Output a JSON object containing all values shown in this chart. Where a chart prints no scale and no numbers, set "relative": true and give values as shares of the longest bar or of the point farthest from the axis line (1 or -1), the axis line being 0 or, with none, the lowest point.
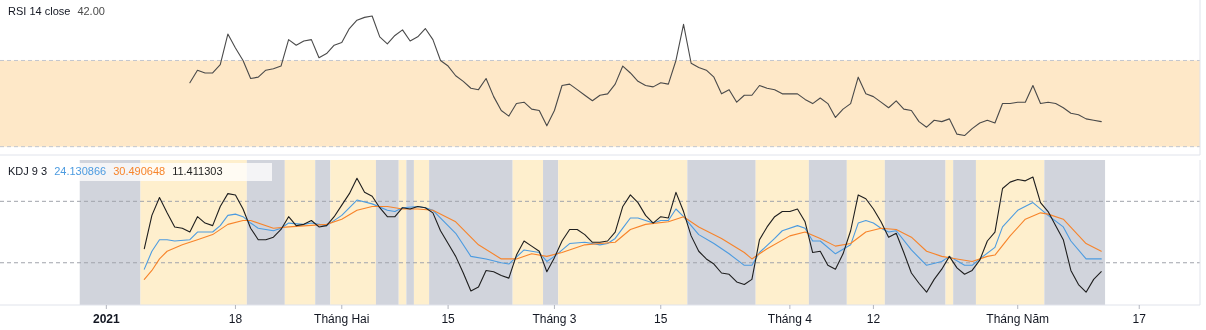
{
  "chart_data": [
    {
      "type": "line",
      "title": "RSI 14 close",
      "relative": true,
      "legend": "top left",
      "xlim": [
        "2020-12-18",
        "2021-05-25"
      ],
      "x": [
        "2021-01-12",
        "2021-01-13",
        "2021-01-14",
        "2021-01-15",
        "2021-01-16",
        "2021-01-17",
        "2021-01-18",
        "2021-01-19",
        "2021-01-20",
        "2021-01-21",
        "2021-01-22",
        "2021-01-23",
        "2021-01-24",
        "2021-01-25",
        "2021-01-26",
        "2021-01-27",
        "2021-01-28",
        "2021-01-29",
        "2021-01-30",
        "2021-01-31",
        "2021-02-01",
        "2021-02-02",
        "2021-02-03",
        "2021-02-04",
        "2021-02-05",
        "2021-02-06",
        "2021-02-07",
        "2021-02-08",
        "2021-02-09",
        "2021-02-10",
        "2021-02-11",
        "2021-02-12",
        "2021-02-13",
        "2021-02-14",
        "2021-02-15",
        "2021-02-16",
        "2021-02-17",
        "2021-02-18",
        "2021-02-19",
        "2021-02-20",
        "2021-02-21",
        "2021-02-22",
        "2021-02-23",
        "2021-02-24",
        "2021-02-25",
        "2021-02-26",
        "2021-02-27",
        "2021-02-28",
        "2021-03-01",
        "2021-03-02",
        "2021-03-03",
        "2021-03-04",
        "2021-03-05",
        "2021-03-06",
        "2021-03-07",
        "2021-03-08",
        "2021-03-09",
        "2021-03-10",
        "2021-03-11",
        "2021-03-12",
        "2021-03-13",
        "2021-03-14",
        "2021-03-15",
        "2021-03-16",
        "2021-03-17",
        "2021-03-18",
        "2021-03-19",
        "2021-03-20",
        "2021-03-21",
        "2021-03-22",
        "2021-03-23",
        "2021-03-24",
        "2021-03-25",
        "2021-03-26",
        "2021-03-27",
        "2021-03-28",
        "2021-03-29",
        "2021-03-30",
        "2021-03-31",
        "2021-04-01",
        "2021-04-02",
        "2021-04-03",
        "2021-04-04",
        "2021-04-05",
        "2021-04-06",
        "2021-04-07",
        "2021-04-08",
        "2021-04-09",
        "2021-04-10",
        "2021-04-11",
        "2021-04-12",
        "2021-04-13",
        "2021-04-14",
        "2021-04-15",
        "2021-04-16",
        "2021-04-17",
        "2021-04-18",
        "2021-04-19",
        "2021-04-20",
        "2021-04-21",
        "2021-04-22",
        "2021-04-23",
        "2021-04-24",
        "2021-04-25",
        "2021-04-26",
        "2021-04-27",
        "2021-04-28",
        "2021-04-29",
        "2021-04-30",
        "2021-05-01",
        "2021-05-02",
        "2021-05-03",
        "2021-05-04",
        "2021-05-05",
        "2021-05-06",
        "2021-05-07",
        "2021-05-08",
        "2021-05-09",
        "2021-05-10",
        "2021-05-11",
        "2021-05-12"
      ],
      "series": [
        {
          "name": "42.00",
          "color": "#4a4a4a",
          "values": [
            0.52,
            0.61,
            0.59,
            0.59,
            0.65,
            0.87,
            0.77,
            0.68,
            0.55,
            0.56,
            0.61,
            0.62,
            0.64,
            0.83,
            0.79,
            0.82,
            0.83,
            0.7,
            0.73,
            0.79,
            0.81,
            0.91,
            0.97,
            0.99,
            1.0,
            0.85,
            0.8,
            0.86,
            0.9,
            0.82,
            0.85,
            0.91,
            0.83,
            0.68,
            0.64,
            0.57,
            0.53,
            0.48,
            0.47,
            0.55,
            0.42,
            0.32,
            0.28,
            0.37,
            0.38,
            0.33,
            0.32,
            0.21,
            0.32,
            0.5,
            0.51,
            0.47,
            0.43,
            0.39,
            0.43,
            0.44,
            0.51,
            0.64,
            0.59,
            0.53,
            0.5,
            0.49,
            0.52,
            0.51,
            0.68,
            0.94,
            0.66,
            0.63,
            0.61,
            0.56,
            0.44,
            0.47,
            0.38,
            0.43,
            0.43,
            0.5,
            0.48,
            0.47,
            0.44,
            0.44,
            0.44,
            0.4,
            0.37,
            0.41,
            0.37,
            0.27,
            0.33,
            0.37,
            0.56,
            0.44,
            0.42,
            0.38,
            0.34,
            0.39,
            0.33,
            0.32,
            0.24,
            0.2,
            0.25,
            0.24,
            0.26,
            0.15,
            0.14,
            0.19,
            0.23,
            0.25,
            0.23,
            0.37,
            0.37,
            0.38,
            0.38,
            0.5,
            0.37,
            0.38,
            0.37,
            0.34,
            0.3,
            0.29,
            0.26,
            0.25,
            0.24
          ]
        }
      ],
      "ref_lines": [
        {
          "axis": "y",
          "value": 0.06,
          "color": "#c3c6ce",
          "line_style": "dashed"
        },
        {
          "axis": "y",
          "value": 0.68,
          "color": "#c3c6ce",
          "line_style": "dashed"
        }
      ],
      "bands": [
        {
          "axis": "y",
          "from": 0.06,
          "to": 0.68,
          "color": "#fee8c8"
        }
      ]
    },
    {
      "type": "line",
      "title": "KDJ 9 3",
      "relative": true,
      "legend": "top left",
      "tick_labels": "x",
      "xlim": [
        "2020-12-18",
        "2021-05-25"
      ],
      "xticks": [
        {
          "value": "2021-01-01",
          "label": "2021"
        },
        {
          "value": "2021-01-18",
          "label": "18"
        },
        {
          "value": "2021-02-01",
          "label": "Tháng Hai"
        },
        {
          "value": "2021-02-15",
          "label": "15"
        },
        {
          "value": "2021-03-01",
          "label": "Tháng 3"
        },
        {
          "value": "2021-03-15",
          "label": "15"
        },
        {
          "value": "2021-04-01",
          "label": "Tháng 4"
        },
        {
          "value": "2021-04-12",
          "label": "12"
        },
        {
          "value": "2021-05-01",
          "label": "Tháng Năm"
        },
        {
          "value": "2021-05-17",
          "label": "17"
        }
      ],
      "x": [
        "2021-01-06",
        "2021-01-07",
        "2021-01-08",
        "2021-01-09",
        "2021-01-10",
        "2021-01-11",
        "2021-01-12",
        "2021-01-13",
        "2021-01-14",
        "2021-01-15",
        "2021-01-16",
        "2021-01-17",
        "2021-01-18",
        "2021-01-19",
        "2021-01-20",
        "2021-01-21",
        "2021-01-22",
        "2021-01-23",
        "2021-01-24",
        "2021-01-25",
        "2021-01-26",
        "2021-01-27",
        "2021-01-28",
        "2021-01-29",
        "2021-01-30",
        "2021-01-31",
        "2021-02-01",
        "2021-02-02",
        "2021-02-03",
        "2021-02-04",
        "2021-02-05",
        "2021-02-06",
        "2021-02-07",
        "2021-02-08",
        "2021-02-09",
        "2021-02-10",
        "2021-02-11",
        "2021-02-12",
        "2021-02-13",
        "2021-02-14",
        "2021-02-15",
        "2021-02-16",
        "2021-02-17",
        "2021-02-18",
        "2021-02-19",
        "2021-02-20",
        "2021-02-21",
        "2021-02-22",
        "2021-02-23",
        "2021-02-24",
        "2021-02-25",
        "2021-02-26",
        "2021-02-27",
        "2021-02-28",
        "2021-03-01",
        "2021-03-02",
        "2021-03-03",
        "2021-03-04",
        "2021-03-05",
        "2021-03-06",
        "2021-03-07",
        "2021-03-08",
        "2021-03-09",
        "2021-03-10",
        "2021-03-11",
        "2021-03-12",
        "2021-03-13",
        "2021-03-14",
        "2021-03-15",
        "2021-03-16",
        "2021-03-17",
        "2021-03-18",
        "2021-03-19",
        "2021-03-20",
        "2021-03-21",
        "2021-03-22",
        "2021-03-23",
        "2021-03-24",
        "2021-03-25",
        "2021-03-26",
        "2021-03-27",
        "2021-03-28",
        "2021-03-29",
        "2021-03-30",
        "2021-03-31",
        "2021-04-01",
        "2021-04-02",
        "2021-04-03",
        "2021-04-04",
        "2021-04-05",
        "2021-04-06",
        "2021-04-07",
        "2021-04-08",
        "2021-04-09",
        "2021-04-10",
        "2021-04-11",
        "2021-04-12",
        "2021-04-13",
        "2021-04-14",
        "2021-04-15",
        "2021-04-16",
        "2021-04-17",
        "2021-04-18",
        "2021-04-19",
        "2021-04-20",
        "2021-04-21",
        "2021-04-22",
        "2021-04-23",
        "2021-04-24",
        "2021-04-25",
        "2021-04-26",
        "2021-04-27",
        "2021-04-28",
        "2021-04-29",
        "2021-04-30",
        "2021-05-01",
        "2021-05-02",
        "2021-05-03",
        "2021-05-04",
        "2021-05-05",
        "2021-05-06",
        "2021-05-07",
        "2021-05-08",
        "2021-05-09",
        "2021-05-10",
        "2021-05-11",
        "2021-05-12"
      ],
      "series": [
        {
          "name": "24.130866",
          "color": "#4c9be0",
          "x": [
            "2021-01-06",
            "2021-01-07",
            "2021-01-08",
            "2021-01-09",
            "2021-01-10",
            "2021-01-12",
            "2021-01-13",
            "2021-01-15",
            "2021-01-16",
            "2021-01-17",
            "2021-01-18",
            "2021-01-19",
            "2021-01-20",
            "2021-01-21",
            "2021-01-23",
            "2021-01-24",
            "2021-01-25",
            "2021-01-27",
            "2021-01-28",
            "2021-01-30",
            "2021-02-01",
            "2021-02-03",
            "2021-02-05",
            "2021-02-07",
            "2021-02-08",
            "2021-02-09",
            "2021-02-11",
            "2021-02-12",
            "2021-02-13",
            "2021-02-16",
            "2021-02-18",
            "2021-02-20",
            "2021-02-22",
            "2021-02-23",
            "2021-02-25",
            "2021-02-27",
            "2021-02-28",
            "2021-03-01",
            "2021-03-03",
            "2021-03-05",
            "2021-03-07",
            "2021-03-08",
            "2021-03-09",
            "2021-03-10",
            "2021-03-11",
            "2021-03-12",
            "2021-03-14",
            "2021-03-15",
            "2021-03-16",
            "2021-03-17",
            "2021-03-18",
            "2021-03-20",
            "2021-03-22",
            "2021-03-24",
            "2021-03-26",
            "2021-03-27",
            "2021-03-28",
            "2021-03-30",
            "2021-03-31",
            "2021-04-02",
            "2021-04-03",
            "2021-04-04",
            "2021-04-05",
            "2021-04-07",
            "2021-04-09",
            "2021-04-10",
            "2021-04-11",
            "2021-04-12",
            "2021-04-13",
            "2021-04-14",
            "2021-04-15",
            "2021-04-17",
            "2021-04-19",
            "2021-04-21",
            "2021-04-22",
            "2021-04-24",
            "2021-04-25",
            "2021-04-26",
            "2021-04-28",
            "2021-04-29",
            "2021-05-01",
            "2021-05-03",
            "2021-05-05",
            "2021-05-07",
            "2021-05-08",
            "2021-05-10",
            "2021-05-12"
          ],
          "values": [
            0.28,
            0.42,
            0.51,
            0.51,
            0.5,
            0.51,
            0.57,
            0.57,
            0.62,
            0.7,
            0.71,
            0.69,
            0.64,
            0.6,
            0.58,
            0.6,
            0.64,
            0.63,
            0.64,
            0.62,
            0.7,
            0.82,
            0.79,
            0.74,
            0.73,
            0.76,
            0.77,
            0.76,
            0.74,
            0.56,
            0.38,
            0.36,
            0.33,
            0.32,
            0.43,
            0.41,
            0.34,
            0.38,
            0.48,
            0.49,
            0.47,
            0.48,
            0.52,
            0.6,
            0.68,
            0.68,
            0.64,
            0.66,
            0.66,
            0.75,
            0.69,
            0.55,
            0.48,
            0.4,
            0.31,
            0.31,
            0.41,
            0.52,
            0.58,
            0.62,
            0.6,
            0.5,
            0.5,
            0.4,
            0.47,
            0.64,
            0.66,
            0.64,
            0.6,
            0.57,
            0.58,
            0.43,
            0.31,
            0.34,
            0.38,
            0.31,
            0.31,
            0.36,
            0.45,
            0.61,
            0.74,
            0.8,
            0.7,
            0.61,
            0.5,
            0.36,
            0.36
          ]
        },
        {
          "name": "30.490648",
          "color": "#f7842b",
          "x": [
            "2021-01-06",
            "2021-01-07",
            "2021-01-08",
            "2021-01-09",
            "2021-01-11",
            "2021-01-13",
            "2021-01-15",
            "2021-01-17",
            "2021-01-19",
            "2021-01-20",
            "2021-01-23",
            "2021-01-25",
            "2021-01-30",
            "2021-02-01",
            "2021-02-03",
            "2021-02-05",
            "2021-02-07",
            "2021-02-09",
            "2021-02-11",
            "2021-02-13",
            "2021-02-16",
            "2021-02-19",
            "2021-02-22",
            "2021-02-24",
            "2021-02-26",
            "2021-02-28",
            "2021-03-02",
            "2021-03-05",
            "2021-03-07",
            "2021-03-09",
            "2021-03-11",
            "2021-03-13",
            "2021-03-16",
            "2021-03-18",
            "2021-03-20",
            "2021-03-23",
            "2021-03-26",
            "2021-03-27",
            "2021-03-29",
            "2021-04-01",
            "2021-04-03",
            "2021-04-05",
            "2021-04-07",
            "2021-04-09",
            "2021-04-11",
            "2021-04-13",
            "2021-04-15",
            "2021-04-17",
            "2021-04-19",
            "2021-04-21",
            "2021-04-23",
            "2021-04-25",
            "2021-04-27",
            "2021-04-28",
            "2021-04-30",
            "2021-05-02",
            "2021-05-04",
            "2021-05-05",
            "2021-05-07",
            "2021-05-10",
            "2021-05-12"
          ],
          "values": [
            0.2,
            0.27,
            0.36,
            0.42,
            0.47,
            0.51,
            0.55,
            0.63,
            0.66,
            0.66,
            0.6,
            0.61,
            0.63,
            0.67,
            0.74,
            0.77,
            0.77,
            0.75,
            0.75,
            0.74,
            0.65,
            0.47,
            0.36,
            0.36,
            0.4,
            0.38,
            0.41,
            0.47,
            0.48,
            0.49,
            0.59,
            0.63,
            0.65,
            0.69,
            0.61,
            0.52,
            0.41,
            0.36,
            0.44,
            0.54,
            0.57,
            0.52,
            0.46,
            0.48,
            0.57,
            0.6,
            0.59,
            0.53,
            0.42,
            0.38,
            0.36,
            0.34,
            0.38,
            0.39,
            0.54,
            0.67,
            0.72,
            0.71,
            0.67,
            0.48,
            0.42
          ]
        },
        {
          "name": "11.411303",
          "color": "#1e1e1e",
          "values": [
            0.44,
            0.7,
            0.84,
            0.72,
            0.61,
            0.6,
            0.57,
            0.69,
            0.64,
            0.62,
            0.77,
            0.87,
            0.86,
            0.75,
            0.6,
            0.51,
            0.51,
            0.53,
            0.59,
            0.69,
            0.62,
            0.63,
            0.66,
            0.61,
            0.62,
            0.69,
            0.78,
            0.87,
            0.99,
            0.88,
            0.85,
            0.76,
            0.69,
            0.69,
            0.76,
            0.75,
            0.77,
            0.76,
            0.72,
            0.58,
            0.48,
            0.38,
            0.25,
            0.11,
            0.14,
            0.27,
            0.26,
            0.23,
            0.21,
            0.39,
            0.5,
            0.46,
            0.42,
            0.26,
            0.37,
            0.5,
            0.59,
            0.59,
            0.55,
            0.49,
            0.49,
            0.5,
            0.57,
            0.77,
            0.86,
            0.8,
            0.7,
            0.64,
            0.69,
            0.68,
            0.88,
            0.73,
            0.54,
            0.42,
            0.36,
            0.32,
            0.25,
            0.24,
            0.18,
            0.16,
            0.2,
            0.51,
            0.61,
            0.69,
            0.73,
            0.73,
            0.75,
            0.65,
            0.41,
            0.42,
            0.31,
            0.28,
            0.4,
            0.58,
            0.86,
            0.83,
            0.75,
            0.65,
            0.53,
            0.56,
            0.41,
            0.25,
            0.17,
            0.1,
            0.2,
            0.28,
            0.38,
            0.29,
            0.24,
            0.27,
            0.35,
            0.5,
            0.57,
            0.91,
            0.96,
            0.98,
            0.97,
            1.0,
            0.8,
            0.73,
            0.62,
            0.51,
            0.27,
            0.16,
            0.1,
            0.2,
            0.26
          ]
        }
      ],
      "ref_lines": [
        {
          "axis": "y",
          "value": 0.81,
          "color": "#a0a3ab",
          "line_style": "dashed"
        },
        {
          "axis": "y",
          "value": 0.33,
          "color": "#a0a3ab",
          "line_style": "dashed"
        }
      ],
      "bands": [
        {
          "axis": "x",
          "from": "2020-12-28T12:00",
          "to": "2021-01-05T12:00",
          "color": "#d1d4dc"
        },
        {
          "axis": "x",
          "from": "2021-01-05T12:00",
          "to": "2021-01-19T12:00",
          "color": "#feefcd"
        },
        {
          "axis": "x",
          "from": "2021-01-19T12:00",
          "to": "2021-01-24T12:00",
          "color": "#d1d4dc"
        },
        {
          "axis": "x",
          "from": "2021-01-24T12:00",
          "to": "2021-01-28T12:00",
          "color": "#feefcd"
        },
        {
          "axis": "x",
          "from": "2021-01-28T12:00",
          "to": "2021-01-30T12:00",
          "color": "#d1d4dc"
        },
        {
          "axis": "x",
          "from": "2021-01-30T12:00",
          "to": "2021-02-05T12:00",
          "color": "#feefcd"
        },
        {
          "axis": "x",
          "from": "2021-02-05T12:00",
          "to": "2021-02-08T12:00",
          "color": "#d1d4dc"
        },
        {
          "axis": "x",
          "from": "2021-02-08T12:00",
          "to": "2021-02-09T12:00",
          "color": "#feefcd"
        },
        {
          "axis": "x",
          "from": "2021-02-09T12:00",
          "to": "2021-02-10T12:00",
          "color": "#d1d4dc"
        },
        {
          "axis": "x",
          "from": "2021-02-10T12:00",
          "to": "2021-02-12T12:00",
          "color": "#feefcd"
        },
        {
          "axis": "x",
          "from": "2021-02-12T12:00",
          "to": "2021-02-23T12:00",
          "color": "#d1d4dc"
        },
        {
          "axis": "x",
          "from": "2021-02-23T12:00",
          "to": "2021-02-27T12:00",
          "color": "#feefcd"
        },
        {
          "axis": "x",
          "from": "2021-02-27T12:00",
          "to": "2021-03-01T12:00",
          "color": "#d1d4dc"
        },
        {
          "axis": "x",
          "from": "2021-03-01T12:00",
          "to": "2021-03-18T12:00",
          "color": "#feefcd"
        },
        {
          "axis": "x",
          "from": "2021-03-18T12:00",
          "to": "2021-03-27T12:00",
          "color": "#d1d4dc"
        },
        {
          "axis": "x",
          "from": "2021-03-27T12:00",
          "to": "2021-04-03T12:00",
          "color": "#feefcd"
        },
        {
          "axis": "x",
          "from": "2021-04-03T12:00",
          "to": "2021-04-08T12:00",
          "color": "#d1d4dc"
        },
        {
          "axis": "x",
          "from": "2021-04-08T12:00",
          "to": "2021-04-13T12:00",
          "color": "#feefcd"
        },
        {
          "axis": "x",
          "from": "2021-04-13T12:00",
          "to": "2021-04-21T12:00",
          "color": "#d1d4dc"
        },
        {
          "axis": "x",
          "from": "2021-04-21T12:00",
          "to": "2021-04-22T12:00",
          "color": "#feefcd"
        },
        {
          "axis": "x",
          "from": "2021-04-22T12:00",
          "to": "2021-04-25T12:00",
          "color": "#d1d4dc"
        },
        {
          "axis": "x",
          "from": "2021-04-25T12:00",
          "to": "2021-05-04T12:00",
          "color": "#feefcd"
        },
        {
          "axis": "x",
          "from": "2021-05-04T12:00",
          "to": "2021-05-12T12:00",
          "color": "#d1d4dc"
        }
      ]
    }
  ]
}
